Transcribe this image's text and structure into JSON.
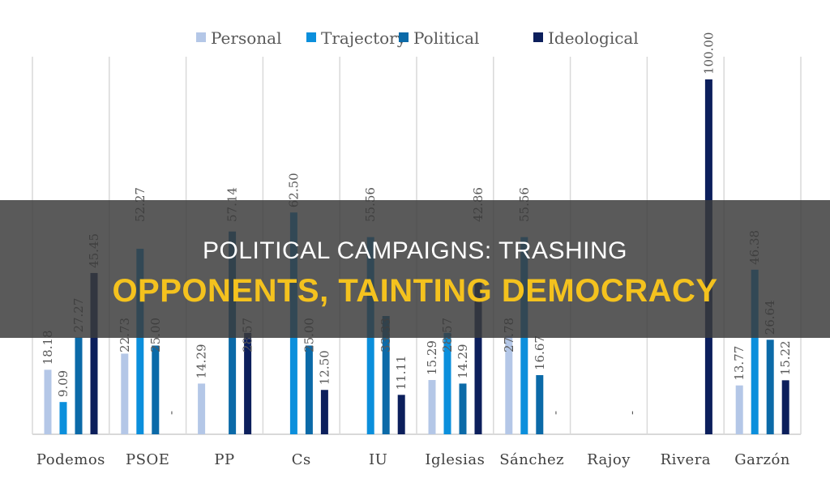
{
  "chart_data": {
    "type": "bar",
    "categories": [
      "Podemos",
      "PSOE",
      "PP",
      "Cs",
      "IU",
      "Iglesias",
      "Sánchez",
      "Rajoy",
      "Rivera",
      "Garzón"
    ],
    "series": [
      {
        "name": "Personal",
        "color": "#b4c7e7",
        "values": [
          18.18,
          22.73,
          14.29,
          null,
          null,
          15.29,
          27.78,
          null,
          null,
          13.77
        ],
        "labels": [
          "18.18",
          "22.73",
          "14.29",
          "",
          "",
          "15.29",
          "27.78",
          "",
          "",
          "13.77"
        ]
      },
      {
        "name": "Trajectory",
        "color": "#0b8fdc",
        "values": [
          9.09,
          52.27,
          null,
          62.5,
          55.56,
          28.57,
          55.56,
          null,
          null,
          46.38
        ],
        "labels": [
          "9.09",
          "52.27",
          "",
          "62.50",
          "55.56",
          "28.57",
          "55.56",
          "",
          "",
          "46.38"
        ]
      },
      {
        "name": "Political",
        "color": "#0b6aa8",
        "values": [
          27.27,
          25.0,
          57.14,
          25.0,
          33.33,
          14.29,
          16.67,
          null,
          null,
          26.64
        ],
        "labels": [
          "27.27",
          "25.00",
          "57.14",
          "25.00",
          "33.33",
          "14.29",
          "16.67",
          "",
          "",
          "26.64"
        ]
      },
      {
        "name": "Ideological",
        "color": "#0c1f5c",
        "values": [
          45.45,
          0,
          28.57,
          12.5,
          11.11,
          42.86,
          0,
          0,
          100.0,
          15.22
        ],
        "labels": [
          "45.45",
          "-",
          "28.57",
          "12.50",
          "11.11",
          "42.86",
          "-",
          "-",
          "100.00",
          "15.22"
        ]
      }
    ],
    "ylim": [
      0,
      100
    ],
    "grid": "vertical category separators",
    "legend": "top"
  },
  "banner": {
    "line1": "POLITICAL CAMPAIGNS: TRASHING",
    "line2": "OPPONENTS, TAINTING DEMOCRACY"
  }
}
